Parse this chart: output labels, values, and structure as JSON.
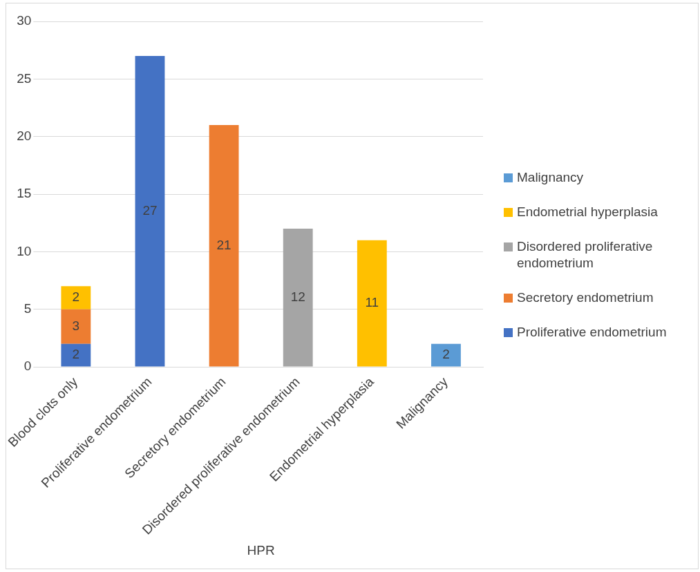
{
  "chart_data": {
    "type": "bar",
    "stacked": true,
    "xlabel": "HPR",
    "categories": [
      "Blood clots only",
      "Proliferative endometrium",
      "Secretory endometrium",
      "Disordered proliferative endometrium",
      "Endometrial hyperplasia",
      "Malignancy"
    ],
    "series": [
      {
        "name": "Proliferative endometrium",
        "color": "#4472c4",
        "values": [
          2,
          27,
          null,
          null,
          null,
          null
        ]
      },
      {
        "name": "Secretory endometrium",
        "color": "#ed7d31",
        "values": [
          3,
          null,
          21,
          null,
          null,
          null
        ]
      },
      {
        "name": "Disordered proliferative endometrium",
        "color": "#a5a5a5",
        "values": [
          null,
          null,
          null,
          12,
          null,
          null
        ]
      },
      {
        "name": "Endometrial hyperplasia",
        "color": "#ffc000",
        "values": [
          2,
          null,
          null,
          null,
          11,
          null
        ]
      },
      {
        "name": "Malignancy",
        "color": "#5b9bd5",
        "values": [
          null,
          null,
          null,
          null,
          null,
          2
        ]
      }
    ],
    "ylim": [
      0,
      30
    ],
    "yticks": [
      0,
      5,
      10,
      15,
      20,
      25,
      30
    ],
    "grid": "y",
    "legend": "right",
    "data_labels": true
  }
}
